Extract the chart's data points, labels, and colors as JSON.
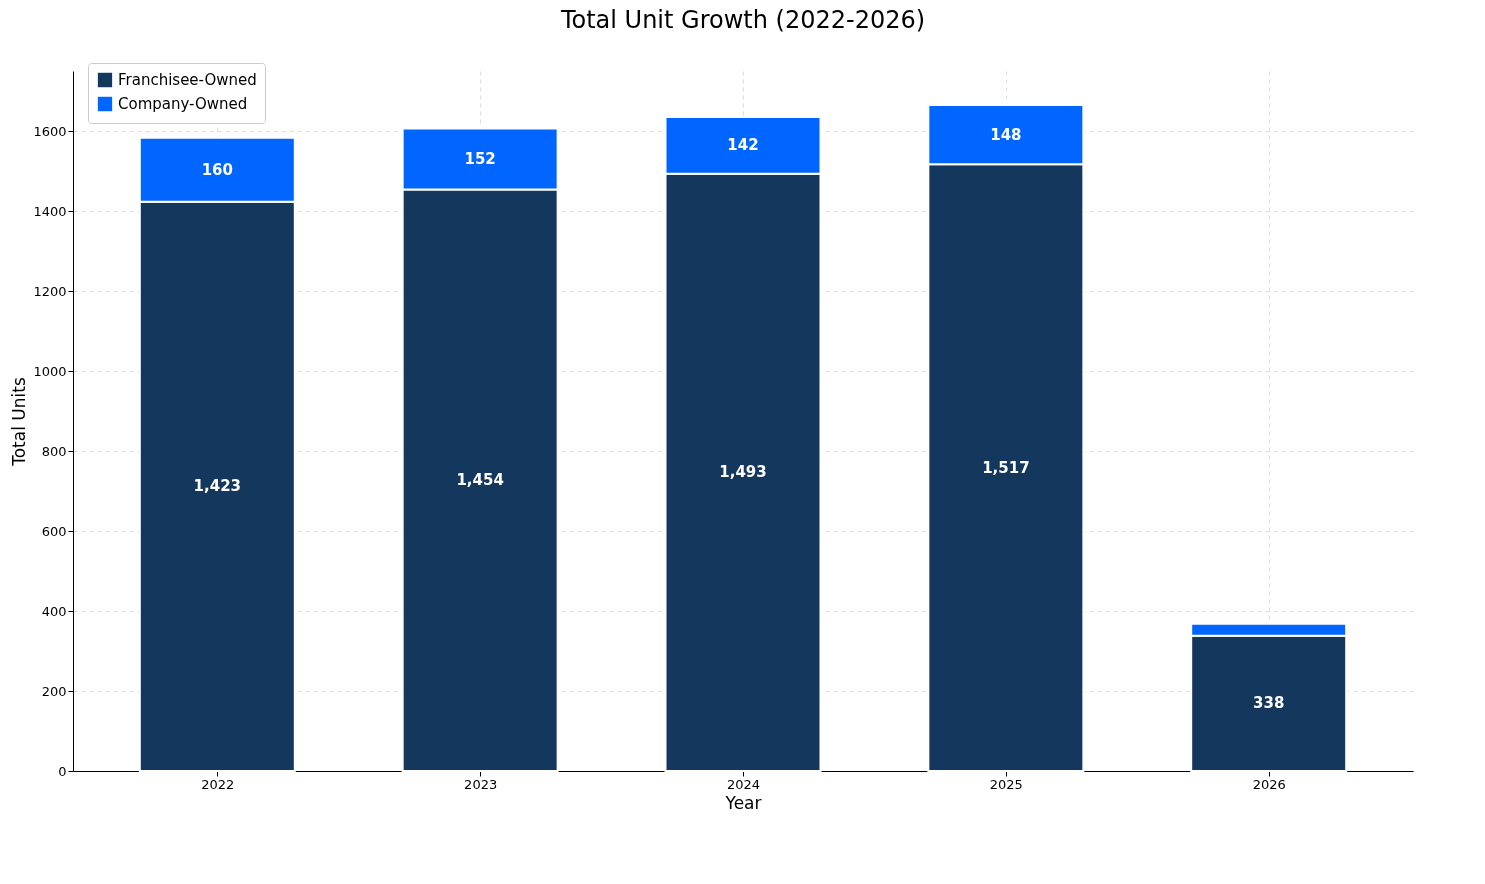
{
  "chart_data": {
    "type": "bar",
    "title": "Total Unit Growth (2022-2026)",
    "xlabel": "Year",
    "ylabel": "Total Units",
    "categories": [
      "2022",
      "2023",
      "2024",
      "2025",
      "2026"
    ],
    "series": [
      {
        "name": "Franchisee-Owned",
        "color": "#14375e",
        "values": [
          1423,
          1454,
          1493,
          1517,
          338
        ],
        "value_labels": [
          "1,423",
          "1,454",
          "1,493",
          "1,517",
          "338"
        ]
      },
      {
        "name": "Company-Owned",
        "color": "#0066ff",
        "values": [
          160,
          152,
          142,
          148,
          30
        ],
        "value_labels": [
          "160",
          "152",
          "142",
          "148",
          null
        ]
      }
    ],
    "stacked": true,
    "ylim": [
      0,
      1750
    ],
    "yticks": [
      0,
      200,
      400,
      600,
      800,
      {
        "value": 1000,
        "label": "1000"
      },
      {
        "value": 1200,
        "label": "1200"
      },
      {
        "value": 1400,
        "label": "1400"
      },
      {
        "value": 1600,
        "label": "1600"
      }
    ],
    "grid": true,
    "legend": "top left"
  }
}
